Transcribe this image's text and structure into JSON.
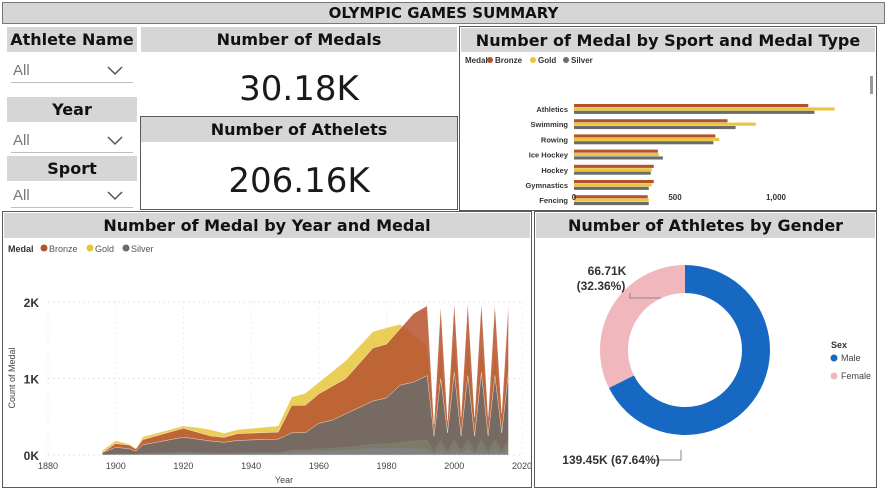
{
  "title": "OLYMPIC GAMES SUMMARY",
  "filters": [
    {
      "label": "Athlete Name",
      "value": "All"
    },
    {
      "label": "Year",
      "value": "All"
    },
    {
      "label": "Sport",
      "value": "All"
    }
  ],
  "cards": {
    "medals": {
      "title": "Number of Medals",
      "value": "30.18K"
    },
    "athletes": {
      "title": "Number of Athelets",
      "value": "206.16K"
    }
  },
  "colors": {
    "bronze": "#b5522e",
    "gold": "#e8c53a",
    "silver": "#6b6b6b",
    "male": "#1768c2",
    "female": "#f0b8bd",
    "header_bg": "#d6d6d6"
  },
  "chart_data": [
    {
      "type": "bar",
      "title": "Number of Medal by Sport and Medal Type",
      "legend_title": "Medal",
      "legend_position": "top-left",
      "orientation": "horizontal",
      "categories": [
        "Athletics",
        "Swimming",
        "Rowing",
        "Ice Hockey",
        "Hockey",
        "Gymnastics",
        "Fencing"
      ],
      "series": [
        {
          "name": "Bronze",
          "values": [
            1160,
            760,
            700,
            415,
            395,
            395,
            365
          ]
        },
        {
          "name": "Gold",
          "values": [
            1290,
            900,
            720,
            420,
            385,
            385,
            370
          ]
        },
        {
          "name": "Silver",
          "values": [
            1190,
            800,
            690,
            440,
            380,
            370,
            370
          ]
        }
      ],
      "x_ticks": [
        "0",
        "500",
        "1,000"
      ],
      "xlim": [
        0,
        1400
      ]
    },
    {
      "type": "area",
      "title": "Number of Medal by Year and Medal",
      "legend_title": "Medal",
      "legend_position": "top-left",
      "xlabel": "Year",
      "ylabel": "Count of Medal",
      "x_ticks": [
        "1880",
        "1900",
        "1920",
        "1940",
        "1960",
        "1980",
        "2000",
        "2020"
      ],
      "y_ticks": [
        "0K",
        "1K",
        "2K"
      ],
      "xlim": [
        1880,
        2020
      ],
      "ylim": [
        0,
        2000
      ],
      "x": [
        1896,
        1900,
        1904,
        1906,
        1908,
        1912,
        1920,
        1924,
        1928,
        1932,
        1936,
        1948,
        1952,
        1956,
        1960,
        1964,
        1968,
        1972,
        1976,
        1980,
        1984,
        1988,
        1992,
        1994,
        1996,
        1998,
        2000,
        2002,
        2004,
        2006,
        2008,
        2010,
        2012,
        2014,
        2016
      ],
      "series": [
        {
          "name": "Bronze",
          "values": [
            30,
            150,
            130,
            80,
            200,
            250,
            350,
            300,
            250,
            230,
            280,
            300,
            650,
            650,
            800,
            900,
            1000,
            1200,
            1400,
            1450,
            1650,
            1850,
            1950,
            400,
            1950,
            450,
            2000,
            500,
            2000,
            500,
            2000,
            500,
            1980,
            550,
            2000
          ]
        },
        {
          "name": "Gold",
          "values": [
            60,
            200,
            150,
            90,
            250,
            300,
            400,
            380,
            350,
            300,
            350,
            400,
            800,
            850,
            1000,
            1150,
            1300,
            1500,
            1700,
            1750,
            1800,
            1650,
            1500,
            350,
            1500,
            400,
            1600,
            400,
            1600,
            400,
            1550,
            400,
            1500,
            450,
            1550
          ]
        },
        {
          "name": "Silver",
          "values": [
            40,
            120,
            100,
            60,
            160,
            200,
            280,
            250,
            220,
            200,
            230,
            250,
            350,
            350,
            500,
            550,
            650,
            750,
            850,
            900,
            1100,
            1150,
            1250,
            300,
            1200,
            350,
            1300,
            300,
            1250,
            300,
            1300,
            300,
            1250,
            350,
            1300
          ]
        }
      ]
    },
    {
      "type": "pie",
      "title": "Number of Athletes by Gender",
      "legend_title": "Sex",
      "legend_position": "right",
      "slices": [
        {
          "name": "Male",
          "value": 139.45,
          "label": "139.45K (67.64%)"
        },
        {
          "name": "Female",
          "value": 66.71,
          "label": "66.71K (32.36%)"
        }
      ],
      "unit": "K"
    }
  ]
}
